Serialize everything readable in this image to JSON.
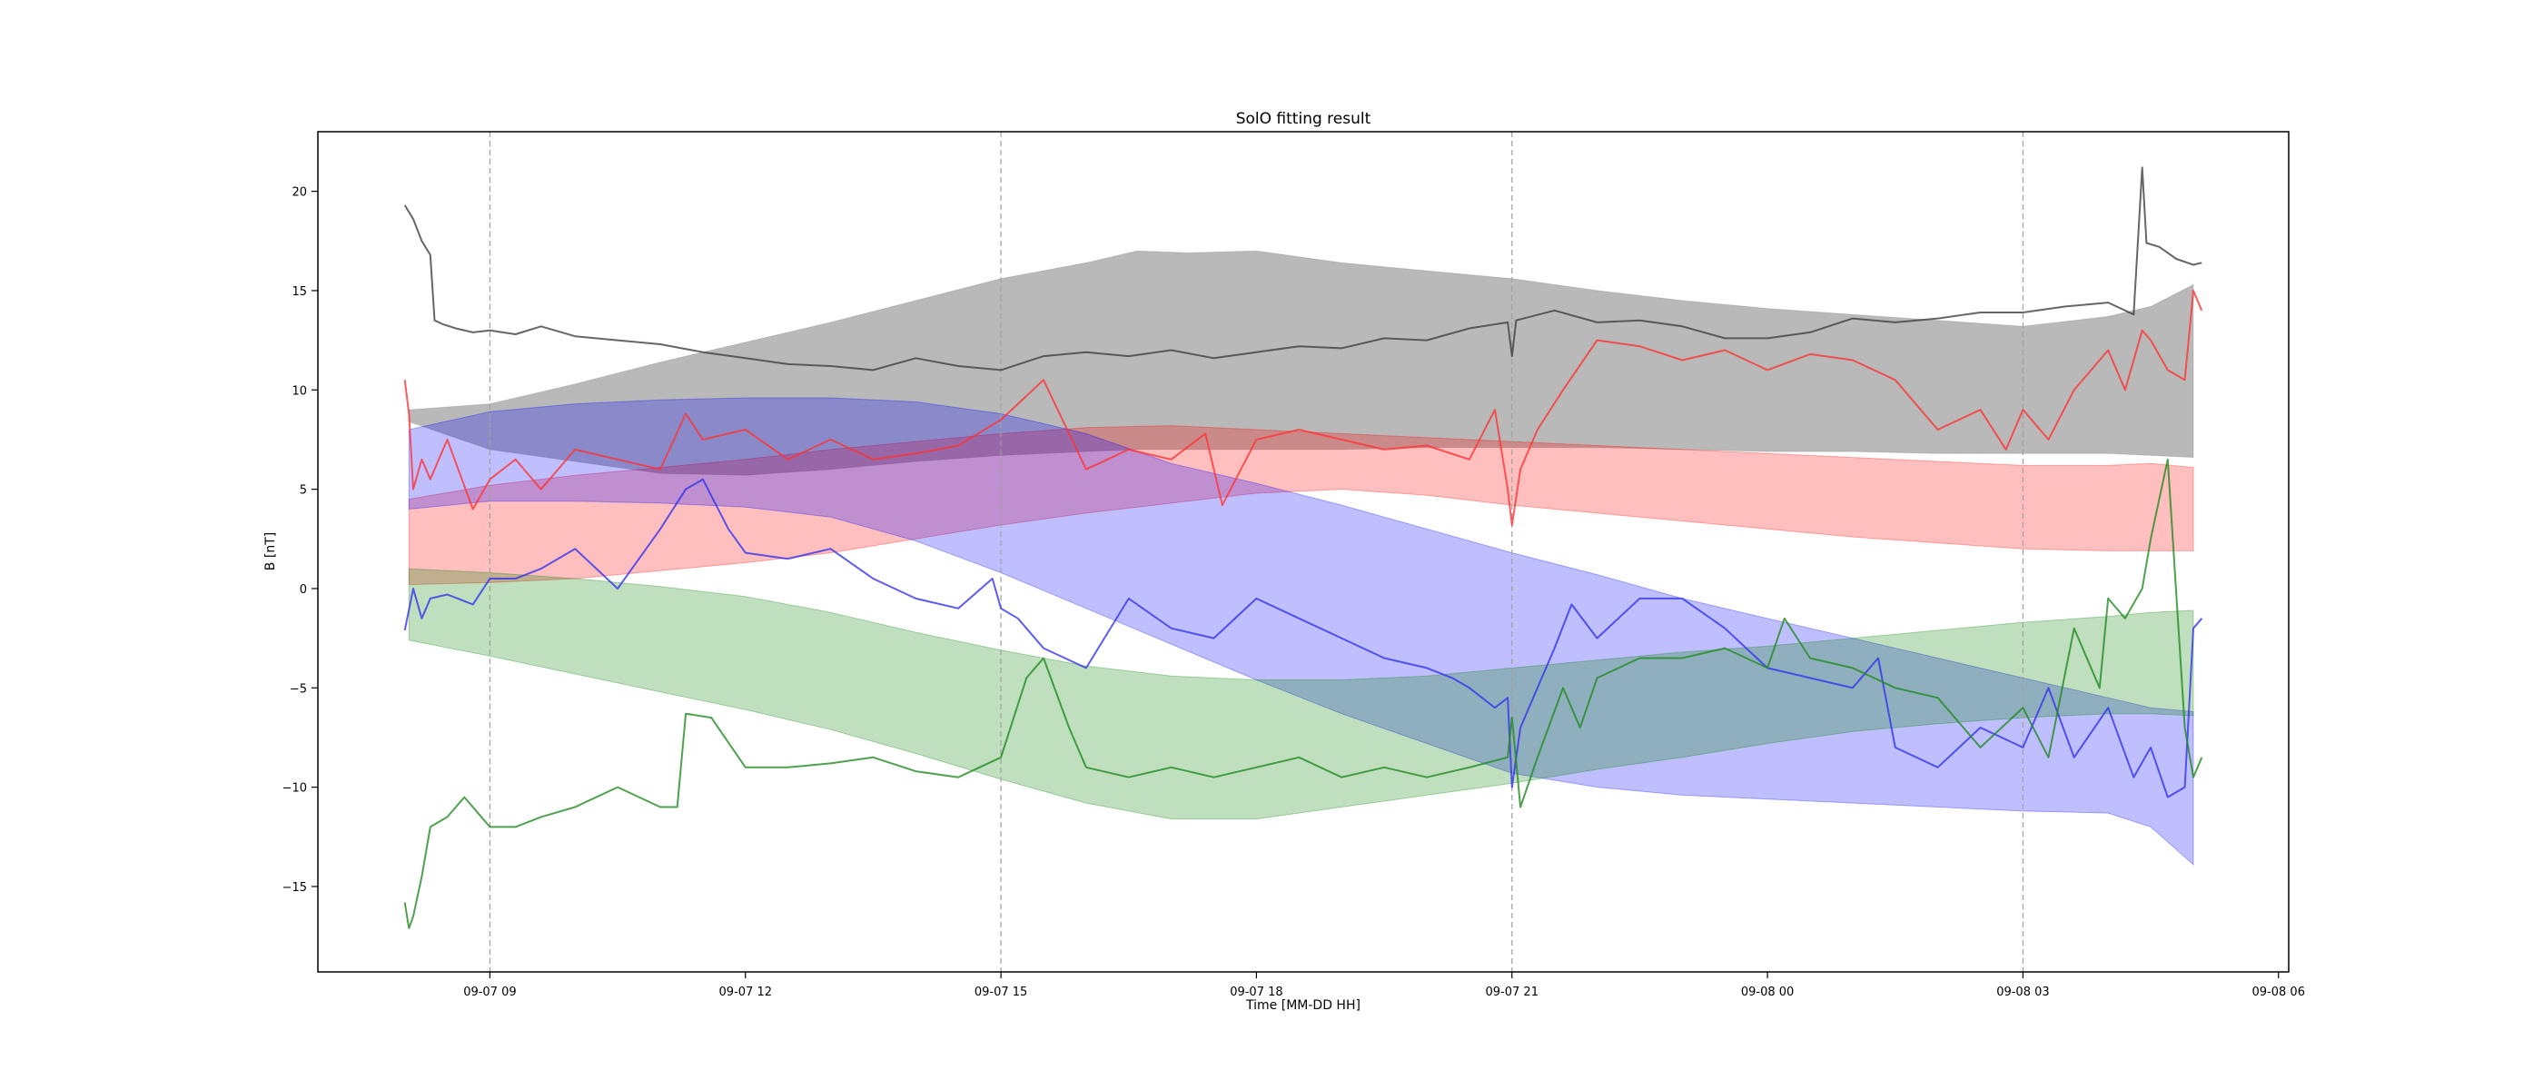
{
  "chart_data": {
    "type": "line",
    "title": "SolO fitting result",
    "xlabel": "Time [MM-DD HH]",
    "ylabel": "B [nT]",
    "x_ticks": [
      {
        "x": 9.0,
        "label": "09-07 09"
      },
      {
        "x": 12.0,
        "label": "09-07 12"
      },
      {
        "x": 15.0,
        "label": "09-07 15"
      },
      {
        "x": 18.0,
        "label": "09-07 18"
      },
      {
        "x": 21.0,
        "label": "09-07 21"
      },
      {
        "x": 24.0,
        "label": "09-08 00"
      },
      {
        "x": 27.0,
        "label": "09-08 03"
      },
      {
        "x": 30.0,
        "label": "09-08 06"
      }
    ],
    "y_ticks": [
      -15,
      -10,
      -5,
      0,
      5,
      10,
      15,
      20
    ],
    "xlim": [
      6.98,
      30.12
    ],
    "ylim": [
      -19.3,
      23.0
    ],
    "vlines": [
      9.0,
      15.0,
      21.0,
      27.0
    ],
    "grid": false,
    "bands": [
      {
        "color": "#808080",
        "alpha": 0.55,
        "x": [
          8.05,
          9.0,
          10.0,
          11.0,
          12.0,
          13.0,
          14.0,
          15.0,
          16.0,
          16.6,
          17.2,
          18.0,
          19.0,
          20.0,
          21.0,
          22.0,
          23.0,
          24.0,
          25.0,
          26.0,
          27.0,
          28.0,
          28.5,
          29.0
        ],
        "upper": [
          9.0,
          9.3,
          10.3,
          11.4,
          12.4,
          13.4,
          14.5,
          15.6,
          16.4,
          17.0,
          16.9,
          17.0,
          16.4,
          16.0,
          15.6,
          15.0,
          14.5,
          14.1,
          13.8,
          13.5,
          13.2,
          13.7,
          14.2,
          15.3
        ],
        "lower": [
          8.4,
          7.0,
          6.4,
          5.8,
          5.7,
          6.0,
          6.4,
          6.7,
          6.9,
          7.0,
          7.0,
          7.0,
          7.0,
          7.1,
          7.1,
          7.1,
          7.0,
          6.9,
          6.9,
          6.8,
          6.8,
          6.8,
          6.7,
          6.6
        ]
      },
      {
        "color": "#ff0000",
        "alpha": 0.25,
        "x": [
          8.05,
          9.0,
          10.0,
          11.0,
          12.0,
          13.0,
          14.0,
          15.0,
          16.0,
          17.0,
          18.0,
          19.0,
          20.0,
          21.0,
          22.0,
          23.0,
          24.0,
          25.0,
          26.0,
          27.0,
          28.0,
          28.5,
          29.0
        ],
        "upper": [
          4.5,
          5.2,
          5.7,
          6.1,
          6.5,
          7.0,
          7.4,
          7.8,
          8.1,
          8.2,
          8.0,
          7.8,
          7.6,
          7.4,
          7.2,
          7.0,
          6.8,
          6.6,
          6.4,
          6.2,
          6.2,
          6.3,
          6.1
        ],
        "lower": [
          0.2,
          0.3,
          0.5,
          0.9,
          1.3,
          1.8,
          2.5,
          3.2,
          3.8,
          4.3,
          4.8,
          5.0,
          4.7,
          4.2,
          3.8,
          3.4,
          3.0,
          2.6,
          2.3,
          2.0,
          1.9,
          1.9,
          1.9
        ]
      },
      {
        "color": "#0000ff",
        "alpha": 0.25,
        "x": [
          8.05,
          9.0,
          10.0,
          11.0,
          12.0,
          13.0,
          14.0,
          15.0,
          16.0,
          17.0,
          18.0,
          19.0,
          20.0,
          21.0,
          22.0,
          23.0,
          24.0,
          25.0,
          26.0,
          27.0,
          28.0,
          28.5,
          29.0
        ],
        "upper": [
          8.0,
          8.9,
          9.3,
          9.5,
          9.6,
          9.6,
          9.4,
          8.8,
          7.8,
          6.3,
          5.3,
          4.2,
          3.0,
          1.8,
          0.7,
          -0.5,
          -1.5,
          -2.5,
          -3.5,
          -4.5,
          -5.5,
          -6.0,
          -6.2
        ],
        "lower": [
          4.0,
          4.4,
          4.4,
          4.3,
          4.1,
          3.6,
          2.4,
          0.8,
          -1.0,
          -2.8,
          -4.6,
          -6.3,
          -7.8,
          -9.3,
          -10.0,
          -10.4,
          -10.6,
          -10.8,
          -11.0,
          -11.2,
          -11.3,
          -12.0,
          -13.9
        ]
      },
      {
        "color": "#008000",
        "alpha": 0.25,
        "x": [
          8.05,
          9.0,
          10.0,
          11.0,
          12.0,
          13.0,
          14.0,
          15.0,
          16.0,
          17.0,
          18.0,
          19.0,
          20.0,
          21.0,
          22.0,
          23.0,
          24.0,
          25.0,
          26.0,
          27.0,
          28.0,
          28.5,
          29.0
        ],
        "upper": [
          1.0,
          0.8,
          0.5,
          0.1,
          -0.4,
          -1.2,
          -2.2,
          -3.1,
          -3.9,
          -4.4,
          -4.6,
          -4.6,
          -4.4,
          -4.0,
          -3.6,
          -3.2,
          -2.9,
          -2.5,
          -2.1,
          -1.7,
          -1.4,
          -1.2,
          -1.1
        ],
        "lower": [
          -2.6,
          -3.4,
          -4.3,
          -5.2,
          -6.1,
          -7.1,
          -8.3,
          -9.6,
          -10.8,
          -11.6,
          -11.6,
          -11.0,
          -10.4,
          -9.8,
          -9.1,
          -8.5,
          -7.8,
          -7.2,
          -6.8,
          -6.5,
          -6.3,
          -6.3,
          -6.4
        ]
      }
    ],
    "series": [
      {
        "color": "#404040",
        "x": [
          8.0,
          8.1,
          8.2,
          8.3,
          8.35,
          8.45,
          8.6,
          8.8,
          9.0,
          9.3,
          9.6,
          10.0,
          10.5,
          11.0,
          11.5,
          12.0,
          12.5,
          13.0,
          13.5,
          14.0,
          14.5,
          15.0,
          15.5,
          16.0,
          16.5,
          17.0,
          17.5,
          18.0,
          18.5,
          19.0,
          19.5,
          20.0,
          20.5,
          20.95,
          21.0,
          21.05,
          21.5,
          22.0,
          22.5,
          23.0,
          23.5,
          24.0,
          24.5,
          25.0,
          25.5,
          26.0,
          26.5,
          27.0,
          27.5,
          28.0,
          28.3,
          28.4,
          28.45,
          28.6,
          28.8,
          29.0,
          29.1
        ],
        "y": [
          19.3,
          18.6,
          17.5,
          16.8,
          13.5,
          13.3,
          13.1,
          12.9,
          13.0,
          12.8,
          13.2,
          12.7,
          12.5,
          12.3,
          11.9,
          11.6,
          11.3,
          11.2,
          11.0,
          11.6,
          11.2,
          11.0,
          11.7,
          11.9,
          11.7,
          12.0,
          11.6,
          11.9,
          12.2,
          12.1,
          12.6,
          12.5,
          13.1,
          13.4,
          11.7,
          13.5,
          14.0,
          13.4,
          13.5,
          13.2,
          12.6,
          12.6,
          12.9,
          13.6,
          13.4,
          13.6,
          13.9,
          13.9,
          14.2,
          14.4,
          13.8,
          21.2,
          17.4,
          17.2,
          16.6,
          16.3,
          16.4
        ]
      },
      {
        "color": "#ff3333",
        "x": [
          8.0,
          8.05,
          8.1,
          8.2,
          8.3,
          8.5,
          8.8,
          9.0,
          9.3,
          9.6,
          10.0,
          10.5,
          11.0,
          11.3,
          11.5,
          12.0,
          12.5,
          13.0,
          13.5,
          14.0,
          14.5,
          15.0,
          15.5,
          16.0,
          16.5,
          17.0,
          17.4,
          17.6,
          18.0,
          18.5,
          19.0,
          19.5,
          20.0,
          20.5,
          20.8,
          20.95,
          21.0,
          21.1,
          21.3,
          21.6,
          22.0,
          22.5,
          23.0,
          23.5,
          24.0,
          24.5,
          25.0,
          25.5,
          26.0,
          26.5,
          26.8,
          27.0,
          27.3,
          27.6,
          28.0,
          28.2,
          28.4,
          28.5,
          28.7,
          28.9,
          29.0,
          29.1
        ],
        "y": [
          10.5,
          8.8,
          5.0,
          6.5,
          5.5,
          7.5,
          4.0,
          5.5,
          6.5,
          5.0,
          7.0,
          6.5,
          6.0,
          8.8,
          7.5,
          8.0,
          6.5,
          7.5,
          6.5,
          6.8,
          7.2,
          8.5,
          10.5,
          6.0,
          7.0,
          6.5,
          7.8,
          4.2,
          7.5,
          8.0,
          7.5,
          7.0,
          7.2,
          6.5,
          9.0,
          5.0,
          3.2,
          6.0,
          8.0,
          10.0,
          12.5,
          12.2,
          11.5,
          12.0,
          11.0,
          11.8,
          11.5,
          10.5,
          8.0,
          9.0,
          7.0,
          9.0,
          7.5,
          10.0,
          12.0,
          10.0,
          13.0,
          12.5,
          11.0,
          10.5,
          15.0,
          14.0
        ]
      },
      {
        "color": "#3333ee",
        "x": [
          8.0,
          8.1,
          8.2,
          8.3,
          8.5,
          8.8,
          9.0,
          9.3,
          9.6,
          10.0,
          10.5,
          11.0,
          11.3,
          11.5,
          11.8,
          12.0,
          12.5,
          13.0,
          13.5,
          14.0,
          14.5,
          14.9,
          15.0,
          15.2,
          15.5,
          16.0,
          16.5,
          17.0,
          17.5,
          18.0,
          18.5,
          19.0,
          19.5,
          20.0,
          20.3,
          20.5,
          20.8,
          20.95,
          21.0,
          21.1,
          21.5,
          21.7,
          22.0,
          22.5,
          23.0,
          23.5,
          24.0,
          24.5,
          25.0,
          25.3,
          25.5,
          26.0,
          26.5,
          27.0,
          27.3,
          27.6,
          28.0,
          28.3,
          28.5,
          28.7,
          28.9,
          29.0,
          29.1
        ],
        "y": [
          -2.1,
          0.0,
          -1.5,
          -0.5,
          -0.3,
          -0.8,
          0.5,
          0.5,
          1.0,
          2.0,
          0.0,
          3.0,
          5.0,
          5.5,
          3.0,
          1.8,
          1.5,
          2.0,
          0.5,
          -0.5,
          -1.0,
          0.5,
          -1.0,
          -1.5,
          -3.0,
          -4.0,
          -0.5,
          -2.0,
          -2.5,
          -0.5,
          -1.5,
          -2.5,
          -3.5,
          -4.0,
          -4.5,
          -5.0,
          -6.0,
          -5.5,
          -10.0,
          -7.0,
          -3.0,
          -0.8,
          -2.5,
          -0.5,
          -0.5,
          -2.0,
          -4.0,
          -4.5,
          -5.0,
          -3.5,
          -8.0,
          -9.0,
          -7.0,
          -8.0,
          -5.0,
          -8.5,
          -6.0,
          -9.5,
          -8.0,
          -10.5,
          -10.0,
          -2.0,
          -1.5
        ]
      },
      {
        "color": "#228b22",
        "x": [
          8.0,
          8.05,
          8.1,
          8.2,
          8.3,
          8.5,
          8.7,
          9.0,
          9.3,
          9.6,
          10.0,
          10.5,
          11.0,
          11.2,
          11.3,
          11.6,
          12.0,
          12.5,
          13.0,
          13.5,
          14.0,
          14.5,
          15.0,
          15.3,
          15.5,
          15.8,
          16.0,
          16.5,
          17.0,
          17.5,
          18.0,
          18.5,
          19.0,
          19.5,
          20.0,
          20.5,
          20.95,
          21.0,
          21.1,
          21.3,
          21.6,
          21.8,
          22.0,
          22.5,
          23.0,
          23.5,
          24.0,
          24.2,
          24.5,
          25.0,
          25.5,
          26.0,
          26.5,
          27.0,
          27.3,
          27.6,
          27.9,
          28.0,
          28.2,
          28.4,
          28.5,
          28.7,
          28.9,
          29.0,
          29.1
        ],
        "y": [
          -15.8,
          -17.1,
          -16.5,
          -14.5,
          -12.0,
          -11.5,
          -10.5,
          -12.0,
          -12.0,
          -11.5,
          -11.0,
          -10.0,
          -11.0,
          -11.0,
          -6.3,
          -6.5,
          -9.0,
          -9.0,
          -8.8,
          -8.5,
          -9.2,
          -9.5,
          -8.5,
          -4.5,
          -3.5,
          -7.0,
          -9.0,
          -9.5,
          -9.0,
          -9.5,
          -9.0,
          -8.5,
          -9.5,
          -9.0,
          -9.5,
          -9.0,
          -8.5,
          -6.5,
          -11.0,
          -8.5,
          -5.0,
          -7.0,
          -4.5,
          -3.5,
          -3.5,
          -3.0,
          -4.0,
          -1.5,
          -3.5,
          -4.0,
          -5.0,
          -5.5,
          -8.0,
          -6.0,
          -8.5,
          -2.0,
          -5.0,
          -0.5,
          -1.5,
          0.0,
          2.5,
          6.5,
          -7.0,
          -9.5,
          -8.5
        ]
      }
    ]
  }
}
